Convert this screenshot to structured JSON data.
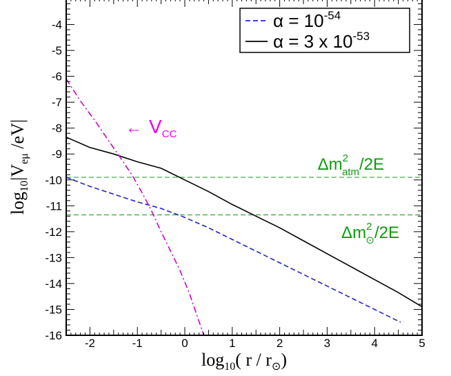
{
  "chart_data": {
    "type": "line",
    "title": "",
    "xlabel": {
      "prefix": "log",
      "prefix_sub": "10",
      "body": "( r / r",
      "sub": "⊙",
      "suffix": ")"
    },
    "ylabel": {
      "prefix": "log",
      "prefix_sub": "10",
      "body": "|V",
      "sub": "eμ",
      "suffix": " /eV|"
    },
    "xlim": [
      -2.5,
      5
    ],
    "ylim": [
      -16,
      -3
    ],
    "xticks": [
      -2,
      -1,
      0,
      1,
      2,
      3,
      4,
      5
    ],
    "xtick_labels": [
      "-2",
      "-1",
      "0",
      "1",
      "2",
      "3",
      "4",
      "5"
    ],
    "yticks": [
      -4,
      -5,
      -6,
      -7,
      -8,
      -9,
      -10,
      -11,
      -12,
      -13,
      -14,
      -15,
      -16
    ],
    "ytick_labels": [
      "-4",
      "-5",
      "-6",
      "-7",
      "-8",
      "-9",
      "-10",
      "-11",
      "-12",
      "-13",
      "-14",
      "-15",
      "-16"
    ],
    "grid": false,
    "legend_position": "top-right",
    "series": [
      {
        "id": "alpha_1e-54",
        "legend_text": "α = 10",
        "legend_sup": "-54",
        "color": "#2222cc",
        "style": "dashed",
        "x": [
          -2.5,
          -2,
          -1.5,
          -1,
          -0.5,
          0,
          0.5,
          1,
          1.5,
          2,
          2.5,
          3,
          3.5,
          4,
          4.55
        ],
        "y": [
          -9.9,
          -10.25,
          -10.55,
          -10.85,
          -11.1,
          -11.45,
          -11.85,
          -12.3,
          -12.75,
          -13.2,
          -13.65,
          -14.1,
          -14.55,
          -15.0,
          -15.5
        ]
      },
      {
        "id": "alpha_3e-53",
        "legend_text": "α = 3 x 10",
        "legend_sup": "-53",
        "color": "#000000",
        "style": "solid",
        "x": [
          -2.5,
          -2,
          -1.5,
          -1,
          -0.5,
          0,
          0.5,
          1,
          1.5,
          2,
          2.5,
          3,
          3.5,
          4,
          4.5,
          5
        ],
        "y": [
          -8.35,
          -8.75,
          -9.0,
          -9.3,
          -9.55,
          -10.0,
          -10.45,
          -10.95,
          -11.4,
          -11.85,
          -12.35,
          -12.85,
          -13.35,
          -13.85,
          -14.35,
          -14.9
        ]
      },
      {
        "id": "vcc",
        "color": "#cc00cc",
        "style": "dashdot",
        "x": [
          -2.5,
          -2.2,
          -1.9,
          -1.6,
          -1.3,
          -1.1,
          -0.9,
          -0.7,
          -0.5,
          -0.3,
          -0.1,
          0.1,
          0.25,
          0.4
        ],
        "y": [
          -6.1,
          -6.95,
          -7.7,
          -8.5,
          -9.3,
          -9.85,
          -10.5,
          -11.2,
          -12.0,
          -12.75,
          -13.5,
          -14.4,
          -15.2,
          -16.0
        ]
      }
    ],
    "hlines": [
      {
        "id": "dm2_atm",
        "y": -9.9,
        "color": "#44aa44",
        "style": "dashed"
      },
      {
        "id": "dm2_sol",
        "y": -11.35,
        "color": "#44aa44",
        "style": "dashed"
      }
    ],
    "annotations": {
      "vcc": {
        "text": "V",
        "sub": "CC",
        "arrow": "←",
        "color": "#ee00ee",
        "x": -1.25,
        "y": -8.2
      },
      "atm": {
        "text": "Δm",
        "sup": "2",
        "sub": "atm",
        "tail": "/2E",
        "color": "#119911",
        "x": 2.8,
        "y": -9.6
      },
      "sol": {
        "text": "Δm",
        "sup": "2",
        "sub": "⊙",
        "tail": "/2E",
        "color": "#119911",
        "x": 3.3,
        "y": -12.25
      }
    }
  }
}
